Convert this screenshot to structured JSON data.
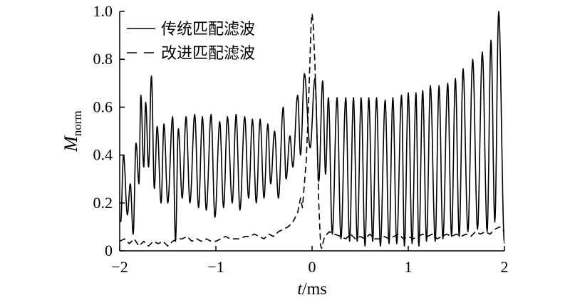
{
  "chart_data": {
    "type": "line",
    "xlabel": "t/ms",
    "xlabel_var": "t",
    "xlabel_unit": "/ms",
    "ylabel_main": "M",
    "ylabel_sub": "norm",
    "xlim": [
      -2,
      2
    ],
    "ylim": [
      0,
      1.0
    ],
    "x_ticks": [
      -2,
      -1,
      0,
      1,
      2
    ],
    "x_tick_labels": [
      "−2",
      "−1",
      "0",
      "1",
      "2"
    ],
    "y_ticks": [
      0,
      0.2,
      0.4,
      0.6,
      0.8,
      1.0
    ],
    "y_tick_labels": [
      "0",
      "0.2",
      "0.4",
      "0.6",
      "0.8",
      "1.0"
    ],
    "grid": false,
    "legend_position": "top-left",
    "series": [
      {
        "name": "传统匹配滤波",
        "style": "solid",
        "color": "#000000",
        "peaks": [
          [
            -1.96,
            0.4
          ],
          [
            -1.89,
            0.28
          ],
          [
            -1.83,
            0.45
          ],
          [
            -1.78,
            0.65
          ],
          [
            -1.73,
            0.62
          ],
          [
            -1.67,
            0.73
          ],
          [
            -1.61,
            0.52
          ],
          [
            -1.54,
            0.53
          ],
          [
            -1.45,
            0.56
          ],
          [
            -1.39,
            0.51
          ],
          [
            -1.31,
            0.56
          ],
          [
            -1.22,
            0.57
          ],
          [
            -1.14,
            0.56
          ],
          [
            -1.05,
            0.57
          ],
          [
            -0.96,
            0.54
          ],
          [
            -0.88,
            0.56
          ],
          [
            -0.79,
            0.57
          ],
          [
            -0.7,
            0.56
          ],
          [
            -0.62,
            0.55
          ],
          [
            -0.54,
            0.55
          ],
          [
            -0.46,
            0.53
          ],
          [
            -0.39,
            0.5
          ],
          [
            -0.3,
            0.6
          ],
          [
            -0.23,
            0.48
          ],
          [
            -0.15,
            0.65
          ],
          [
            -0.08,
            0.74
          ],
          [
            0.03,
            0.72
          ],
          [
            0.11,
            0.71
          ],
          [
            0.17,
            0.64
          ],
          [
            0.26,
            0.64
          ],
          [
            0.35,
            0.64
          ],
          [
            0.43,
            0.64
          ],
          [
            0.51,
            0.64
          ],
          [
            0.59,
            0.64
          ],
          [
            0.67,
            0.64
          ],
          [
            0.76,
            0.63
          ],
          [
            0.84,
            0.64
          ],
          [
            0.93,
            0.65
          ],
          [
            1.0,
            0.66
          ],
          [
            1.08,
            0.66
          ],
          [
            1.15,
            0.67
          ],
          [
            1.23,
            0.69
          ],
          [
            1.32,
            0.69
          ],
          [
            1.41,
            0.7
          ],
          [
            1.49,
            0.72
          ],
          [
            1.57,
            0.76
          ],
          [
            1.67,
            0.8
          ],
          [
            1.77,
            0.83
          ],
          [
            1.86,
            0.88
          ],
          [
            1.94,
            1.0
          ]
        ],
        "troughs": [
          [
            -1.99,
            0.12
          ],
          [
            -1.92,
            0.15
          ],
          [
            -1.86,
            0.07
          ],
          [
            -1.8,
            0.28
          ],
          [
            -1.75,
            0.35
          ],
          [
            -1.7,
            0.35
          ],
          [
            -1.64,
            0.26
          ],
          [
            -1.57,
            0.2
          ],
          [
            -1.5,
            0.2
          ],
          [
            -1.42,
            0.04
          ],
          [
            -1.35,
            0.22
          ],
          [
            -1.27,
            0.2
          ],
          [
            -1.18,
            0.18
          ],
          [
            -1.1,
            0.17
          ],
          [
            -1.01,
            0.14
          ],
          [
            -0.92,
            0.18
          ],
          [
            -0.83,
            0.2
          ],
          [
            -0.75,
            0.17
          ],
          [
            -0.66,
            0.22
          ],
          [
            -0.58,
            0.2
          ],
          [
            -0.5,
            0.22
          ],
          [
            -0.43,
            0.28
          ],
          [
            -0.35,
            0.22
          ],
          [
            -0.27,
            0.3
          ],
          [
            -0.2,
            0.35
          ],
          [
            -0.12,
            0.4
          ],
          [
            -0.02,
            0.43
          ],
          [
            0.07,
            0.29
          ],
          [
            0.14,
            0.32
          ],
          [
            0.21,
            0.07
          ],
          [
            0.3,
            0.05
          ],
          [
            0.39,
            0.04
          ],
          [
            0.47,
            0.04
          ],
          [
            0.55,
            0.02
          ],
          [
            0.63,
            0.04
          ],
          [
            0.71,
            0.02
          ],
          [
            0.8,
            0.03
          ],
          [
            0.88,
            0.03
          ],
          [
            0.96,
            0.02
          ],
          [
            1.04,
            0.03
          ],
          [
            1.11,
            0.02
          ],
          [
            1.19,
            0.04
          ],
          [
            1.28,
            0.04
          ],
          [
            1.36,
            0.05
          ],
          [
            1.45,
            0.06
          ],
          [
            1.53,
            0.06
          ],
          [
            1.62,
            0.08
          ],
          [
            1.72,
            0.09
          ],
          [
            1.82,
            0.08
          ],
          [
            1.9,
            0.12
          ],
          [
            2.0,
            0.03
          ]
        ]
      },
      {
        "name": "改进匹配滤波",
        "style": "dashed",
        "color": "#000000",
        "points": [
          [
            -2.0,
            0.04
          ],
          [
            -1.95,
            0.05
          ],
          [
            -1.9,
            0.03
          ],
          [
            -1.85,
            0.05
          ],
          [
            -1.8,
            0.02
          ],
          [
            -1.75,
            0.04
          ],
          [
            -1.7,
            0.02
          ],
          [
            -1.65,
            0.04
          ],
          [
            -1.6,
            0.03
          ],
          [
            -1.55,
            0.04
          ],
          [
            -1.5,
            0.02
          ],
          [
            -1.45,
            0.04
          ],
          [
            -1.4,
            0.05
          ],
          [
            -1.35,
            0.05
          ],
          [
            -1.3,
            0.06
          ],
          [
            -1.25,
            0.04
          ],
          [
            -1.2,
            0.05
          ],
          [
            -1.15,
            0.04
          ],
          [
            -1.1,
            0.05
          ],
          [
            -1.05,
            0.04
          ],
          [
            -1.0,
            0.04
          ],
          [
            -0.95,
            0.05
          ],
          [
            -0.9,
            0.06
          ],
          [
            -0.85,
            0.05
          ],
          [
            -0.8,
            0.05
          ],
          [
            -0.75,
            0.05
          ],
          [
            -0.7,
            0.06
          ],
          [
            -0.65,
            0.06
          ],
          [
            -0.6,
            0.07
          ],
          [
            -0.55,
            0.06
          ],
          [
            -0.5,
            0.05
          ],
          [
            -0.45,
            0.07
          ],
          [
            -0.4,
            0.06
          ],
          [
            -0.35,
            0.08
          ],
          [
            -0.3,
            0.09
          ],
          [
            -0.25,
            0.1
          ],
          [
            -0.2,
            0.12
          ],
          [
            -0.15,
            0.16
          ],
          [
            -0.12,
            0.22
          ],
          [
            -0.1,
            0.18
          ],
          [
            -0.08,
            0.28
          ],
          [
            -0.06,
            0.38
          ],
          [
            -0.04,
            0.58
          ],
          [
            -0.02,
            0.82
          ],
          [
            -0.01,
            0.95
          ],
          [
            0.0,
            0.99
          ],
          [
            0.01,
            0.96
          ],
          [
            0.03,
            0.78
          ],
          [
            0.05,
            0.5
          ],
          [
            0.07,
            0.2
          ],
          [
            0.08,
            0.1
          ],
          [
            0.09,
            0.02
          ],
          [
            0.1,
            0.01
          ],
          [
            0.13,
            0.06
          ],
          [
            0.18,
            0.08
          ],
          [
            0.23,
            0.07
          ],
          [
            0.3,
            0.06
          ],
          [
            0.35,
            0.05
          ],
          [
            0.4,
            0.07
          ],
          [
            0.45,
            0.05
          ],
          [
            0.5,
            0.06
          ],
          [
            0.55,
            0.05
          ],
          [
            0.6,
            0.07
          ],
          [
            0.65,
            0.05
          ],
          [
            0.7,
            0.05
          ],
          [
            0.75,
            0.06
          ],
          [
            0.8,
            0.05
          ],
          [
            0.85,
            0.06
          ],
          [
            0.9,
            0.07
          ],
          [
            0.95,
            0.05
          ],
          [
            1.0,
            0.06
          ],
          [
            1.05,
            0.05
          ],
          [
            1.1,
            0.06
          ],
          [
            1.15,
            0.07
          ],
          [
            1.2,
            0.06
          ],
          [
            1.25,
            0.07
          ],
          [
            1.3,
            0.05
          ],
          [
            1.35,
            0.06
          ],
          [
            1.4,
            0.07
          ],
          [
            1.45,
            0.06
          ],
          [
            1.5,
            0.07
          ],
          [
            1.55,
            0.06
          ],
          [
            1.6,
            0.07
          ],
          [
            1.65,
            0.06
          ],
          [
            1.7,
            0.08
          ],
          [
            1.75,
            0.07
          ],
          [
            1.8,
            0.08
          ],
          [
            1.85,
            0.07
          ],
          [
            1.9,
            0.09
          ],
          [
            1.95,
            0.1
          ],
          [
            2.0,
            0.08
          ]
        ]
      }
    ]
  }
}
